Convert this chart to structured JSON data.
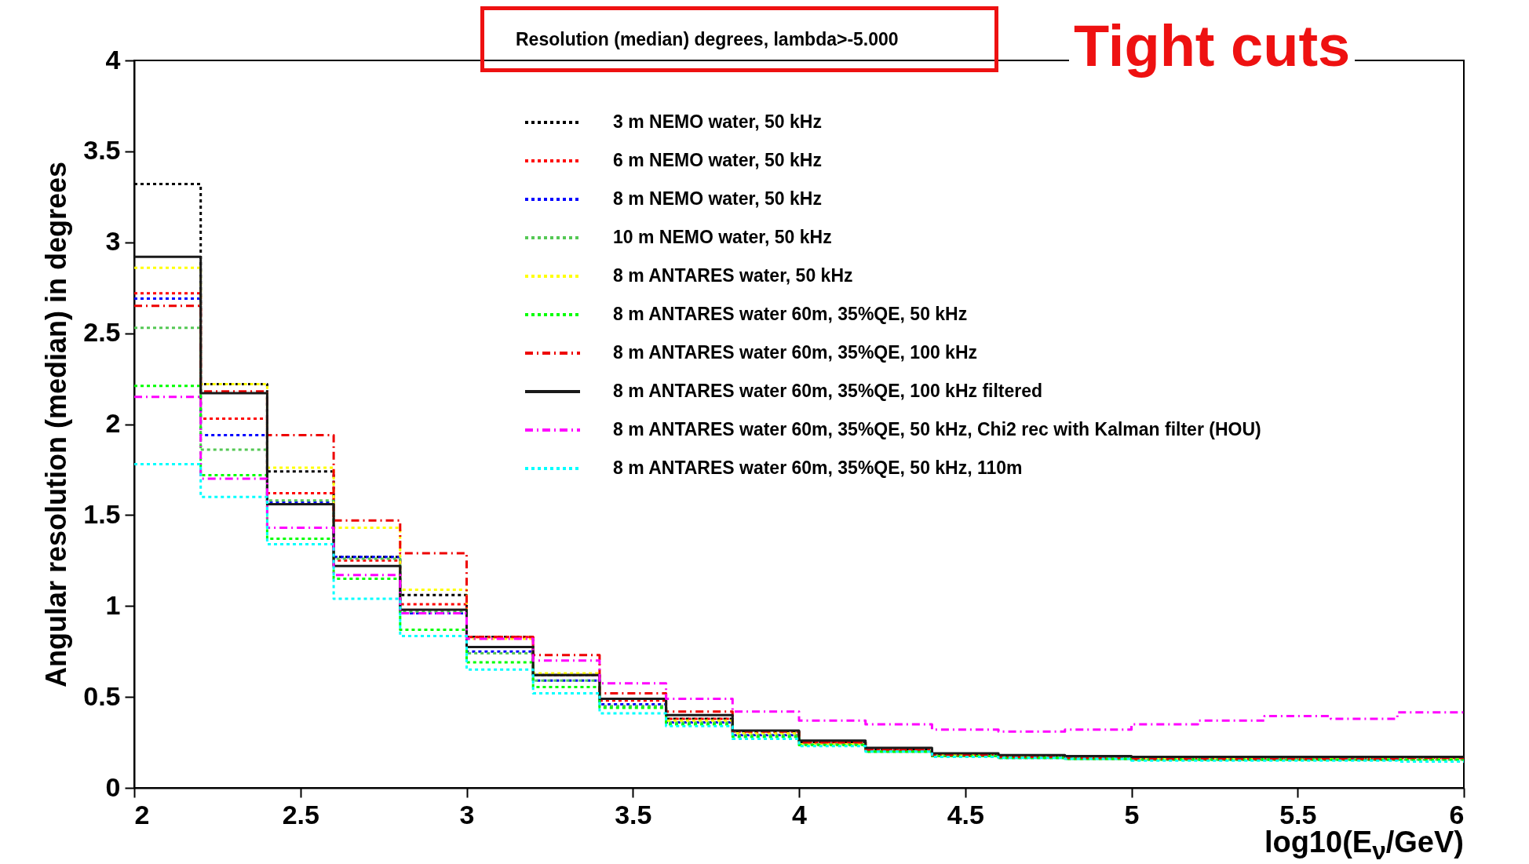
{
  "chart_data": {
    "type": "histogram",
    "title": "Resolution (median) degrees, lambda>-5.000",
    "annotations": [
      "Tight cuts"
    ],
    "xlabel": "log10(E$_{ν}$/GeV)",
    "ylabel": "Angular resolution (median) in degrees",
    "bins": [
      2,
      2.2,
      2.4,
      2.6,
      2.8,
      3,
      3.2,
      3.4,
      3.6,
      3.8,
      4,
      4.2,
      4.4,
      4.6,
      4.8,
      5,
      5.2,
      5.4,
      5.6,
      5.8,
      6
    ],
    "series": [
      {
        "name": "3 m NEMO water, 50 kHz",
        "color": "#000000",
        "line_style": "dotted",
        "values": [
          3.32,
          2.22,
          1.74,
          1.27,
          1.06,
          0.83,
          0.62,
          0.49,
          0.38,
          0.31,
          0.25,
          0.21,
          0.18,
          0.17,
          0.165,
          0.16,
          0.16,
          0.16,
          0.16,
          0.17
        ]
      },
      {
        "name": "6 m NEMO water, 50 kHz",
        "color": "#ff0000",
        "line_style": "dotted",
        "values": [
          2.72,
          2.03,
          1.62,
          1.25,
          1.01,
          0.83,
          0.62,
          0.48,
          0.38,
          0.3,
          0.25,
          0.21,
          0.18,
          0.17,
          0.165,
          0.16,
          0.16,
          0.16,
          0.16,
          0.165
        ]
      },
      {
        "name": "8 m NEMO water, 50 kHz",
        "color": "#0000ff",
        "line_style": "dotted",
        "values": [
          2.69,
          1.94,
          1.57,
          1.27,
          0.96,
          0.75,
          0.59,
          0.46,
          0.36,
          0.29,
          0.24,
          0.2,
          0.18,
          0.165,
          0.16,
          0.16,
          0.155,
          0.155,
          0.155,
          0.16
        ]
      },
      {
        "name": "10 m NEMO water, 50 kHz",
        "color": "#55c855",
        "line_style": "dotted",
        "values": [
          2.53,
          1.86,
          1.58,
          1.26,
          0.97,
          0.74,
          0.59,
          0.45,
          0.36,
          0.29,
          0.24,
          0.2,
          0.175,
          0.165,
          0.16,
          0.155,
          0.155,
          0.155,
          0.155,
          0.155
        ]
      },
      {
        "name": "8 m ANTARES water, 50 kHz",
        "color": "#ffff00",
        "line_style": "dotted",
        "values": [
          2.86,
          2.22,
          1.76,
          1.43,
          1.09,
          0.82,
          0.63,
          0.49,
          0.37,
          0.3,
          0.24,
          0.2,
          0.18,
          0.17,
          0.16,
          0.16,
          0.16,
          0.155,
          0.16,
          0.16
        ]
      },
      {
        "name": "8 m ANTARES water 60m, 35%QE, 50 kHz",
        "color": "#00ff00",
        "line_style": "dotted",
        "values": [
          2.21,
          1.72,
          1.37,
          1.15,
          0.87,
          0.69,
          0.555,
          0.44,
          0.35,
          0.28,
          0.235,
          0.2,
          0.175,
          0.165,
          0.16,
          0.155,
          0.155,
          0.155,
          0.155,
          0.155
        ]
      },
      {
        "name": "8 m ANTARES water 60m, 35%QE, 100 kHz",
        "color": "#ee0000",
        "line_style": "dashdot",
        "values": [
          2.65,
          2.18,
          1.94,
          1.47,
          1.29,
          0.83,
          0.73,
          0.52,
          0.42,
          0.31,
          0.25,
          0.21,
          0.18,
          0.17,
          0.165,
          0.16,
          0.16,
          0.16,
          0.16,
          0.165
        ]
      },
      {
        "name": "8 m ANTARES water 60m, 35%QE, 100 kHz filtered",
        "color": "#1a1a1a",
        "line_style": "solid",
        "values": [
          2.92,
          2.17,
          1.56,
          1.22,
          0.98,
          0.775,
          0.62,
          0.49,
          0.4,
          0.315,
          0.26,
          0.22,
          0.19,
          0.18,
          0.175,
          0.17,
          0.17,
          0.17,
          0.17,
          0.17
        ]
      },
      {
        "name": "8 m ANTARES water 60m, 35%QE, 50 kHz, Chi2 rec with Kalman filter (HOU)",
        "color": "#ff00ff",
        "line_style": "dashdot",
        "values": [
          2.15,
          1.7,
          1.43,
          1.17,
          0.96,
          0.82,
          0.7,
          0.575,
          0.49,
          0.42,
          0.37,
          0.35,
          0.32,
          0.31,
          0.32,
          0.35,
          0.37,
          0.395,
          0.38,
          0.415
        ]
      },
      {
        "name": "8 m ANTARES water 60m, 35%QE, 50 kHz, 110m",
        "color": "#00ffff",
        "line_style": "dotted",
        "values": [
          1.78,
          1.6,
          1.34,
          1.04,
          0.835,
          0.65,
          0.52,
          0.41,
          0.34,
          0.27,
          0.23,
          0.2,
          0.17,
          0.165,
          0.16,
          0.15,
          0.15,
          0.15,
          0.15,
          0.145
        ]
      }
    ],
    "xlim": [
      2,
      6
    ],
    "xticks": [
      2,
      2.5,
      3,
      3.5,
      4,
      4.5,
      5,
      5.5,
      6
    ],
    "ylim": [
      0,
      4
    ],
    "yticks": [
      0,
      0.5,
      1,
      1.5,
      2,
      2.5,
      3,
      3.5,
      4
    ],
    "legend": "top right",
    "grid": false
  }
}
